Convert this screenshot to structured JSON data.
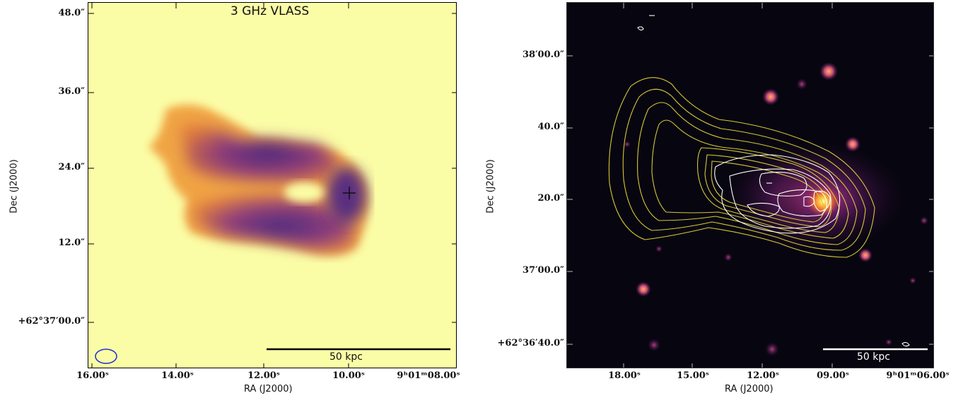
{
  "left_panel": {
    "title": "3 GHz VLASS",
    "y_ticks": [
      "48.0″",
      "36.0″",
      "24.0″",
      "12.0″",
      "+62°37′00.0″"
    ],
    "x_ticks": [
      "16.00ˢ",
      "14.00ˢ",
      "12.00ˢ",
      "10.00ˢ",
      "9ʰ01ᵐ08.00ˢ"
    ],
    "x_label": "RA (J2000)",
    "y_label": "Dec (J2000)",
    "scale_bar_label": "50 kpc",
    "colors": {
      "background": "#fbfda6",
      "beam": "#1c2bd9"
    }
  },
  "right_panel": {
    "y_ticks": [
      "38′00.0″",
      "40.0″",
      "20.0″",
      "37′00.0″",
      "+62°36′40.0″"
    ],
    "x_ticks": [
      "18.00ˢ",
      "15.00ˢ",
      "12.00ˢ",
      "09.00ˢ",
      "9ʰ01ᵐ06.00ˢ"
    ],
    "x_label": "RA (J2000)",
    "y_label": "Dec (J2000)",
    "scale_bar_label": "50 kpc",
    "colors": {
      "background": "#07050f",
      "radio_contours": "#d6c838",
      "xray_contours": "#ffffff"
    }
  }
}
